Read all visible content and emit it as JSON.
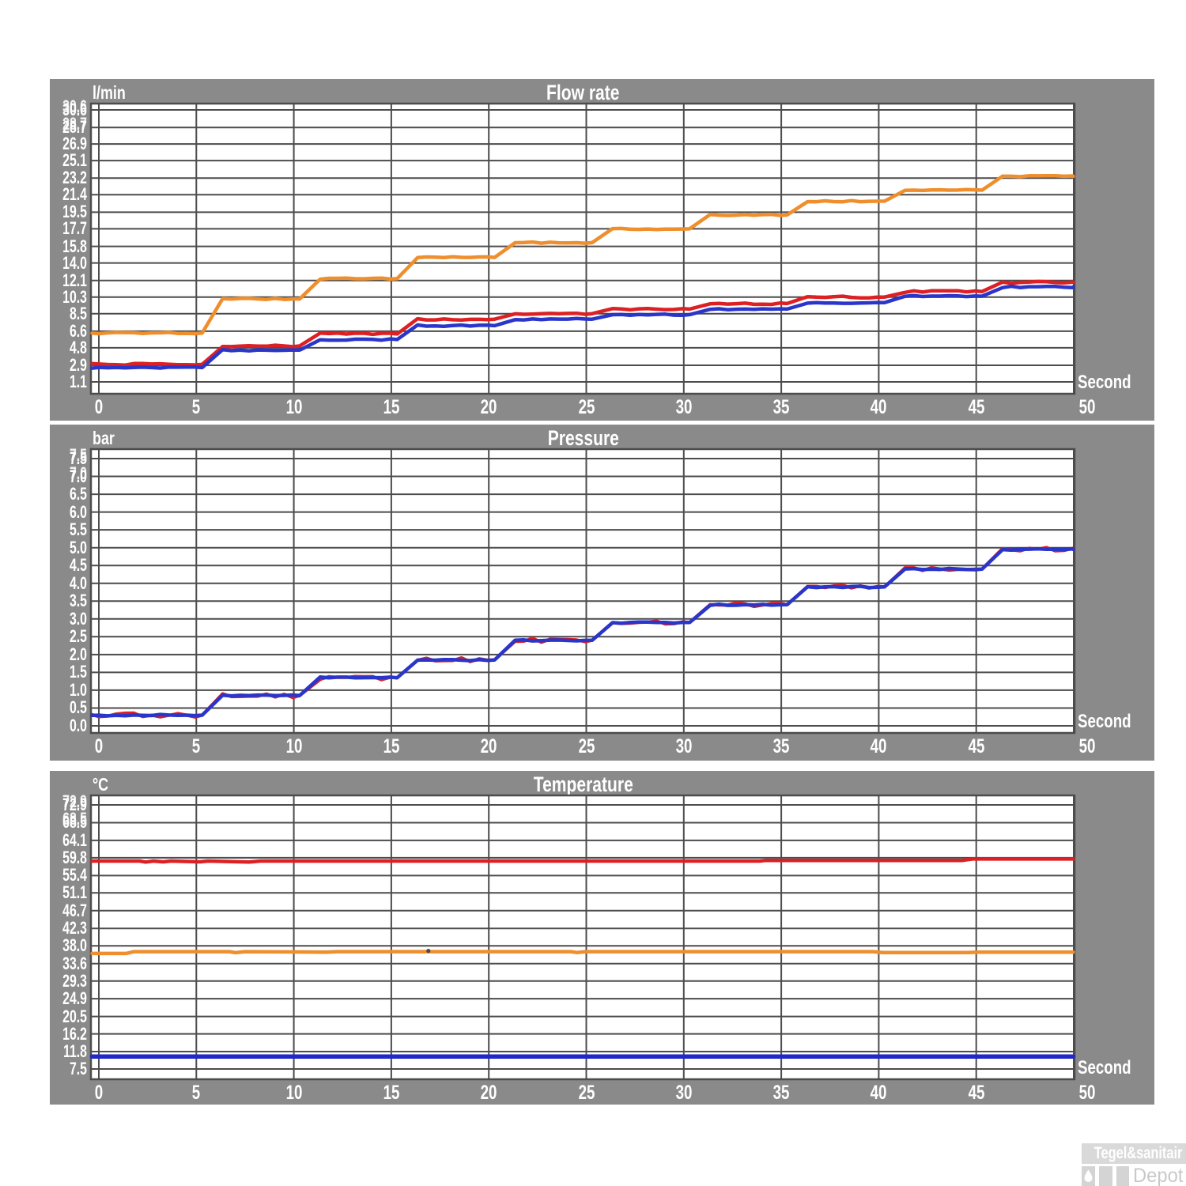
{
  "watermark": {
    "brand": "Tegel&sanitair",
    "sub": "Depot",
    "drop_icon": "water-drop"
  },
  "chart_data": [
    {
      "type": "line",
      "title": "Flow rate",
      "ylabel": "l/min",
      "xlabel": "Second",
      "x_range": [
        0,
        50
      ],
      "grid": true,
      "legend": "none",
      "plateau_interval_s": 5,
      "x_ticks": [
        "0",
        "5",
        "10",
        "15",
        "20",
        "25",
        "30",
        "35",
        "40",
        "45",
        "50"
      ],
      "y_ticks": [
        "30.6",
        "28.7",
        "26.9",
        "25.1",
        "23.2",
        "21.4",
        "19.5",
        "17.7",
        "15.8",
        "14.0",
        "12.1",
        "10.3",
        "8.5",
        "6.6",
        "4.8",
        "2.9",
        "1.1"
      ],
      "y_ticks_doubled": 2,
      "series": [
        {
          "name": "orange-line",
          "color": "#ef8e2c",
          "width": 4.5,
          "noise": 0.07,
          "plateaus": [
            6.4,
            10.1,
            12.3,
            14.6,
            16.2,
            17.7,
            19.2,
            20.7,
            21.9,
            23.4
          ]
        },
        {
          "name": "red-line",
          "color": "#dc2024",
          "width": 4.5,
          "noise": 0.1,
          "plateaus": [
            3.0,
            5.0,
            6.3,
            7.9,
            8.5,
            9.0,
            9.6,
            10.3,
            10.9,
            11.9
          ]
        },
        {
          "name": "blue-line",
          "color": "#2a35c9",
          "width": 4.5,
          "noise": 0.08,
          "plateaus": [
            2.65,
            4.55,
            5.7,
            7.2,
            7.9,
            8.4,
            9.0,
            9.7,
            10.4,
            11.4
          ]
        }
      ]
    },
    {
      "type": "line",
      "title": "Pressure",
      "ylabel": "bar",
      "xlabel": "Second",
      "x_range": [
        0,
        50
      ],
      "grid": true,
      "legend": "none",
      "plateau_interval_s": 5,
      "x_ticks": [
        "0",
        "5",
        "10",
        "15",
        "20",
        "25",
        "30",
        "35",
        "40",
        "45",
        "50"
      ],
      "y_ticks": [
        "7.5",
        "7.0",
        "6.5",
        "6.0",
        "5.5",
        "5.0",
        "4.5",
        "4.0",
        "3.5",
        "3.0",
        "2.5",
        "2.0",
        "1.5",
        "1.0",
        "0.5",
        "0.0"
      ],
      "y_ticks_doubled": 2,
      "series": [
        {
          "name": "red-line",
          "color": "#dc2024",
          "width": 4,
          "noise": 0.06,
          "plateaus": [
            0.3,
            0.85,
            1.35,
            1.85,
            2.4,
            2.9,
            3.4,
            3.9,
            4.4,
            4.95
          ]
        },
        {
          "name": "blue-line",
          "color": "#2a35c9",
          "width": 4.5,
          "noise": 0.02,
          "plateaus": [
            0.3,
            0.85,
            1.35,
            1.85,
            2.4,
            2.9,
            3.4,
            3.9,
            4.4,
            4.95
          ]
        }
      ]
    },
    {
      "type": "line",
      "title": "Temperature",
      "ylabel": "°C",
      "xlabel": "Second",
      "x_range": [
        0,
        50
      ],
      "grid": true,
      "legend": "none",
      "x_ticks": [
        "0",
        "5",
        "10",
        "15",
        "20",
        "25",
        "30",
        "35",
        "40",
        "45",
        "50"
      ],
      "y_ticks": [
        "72.9",
        "68.5",
        "64.1",
        "59.8",
        "55.4",
        "51.1",
        "46.7",
        "42.3",
        "38.0",
        "33.6",
        "29.3",
        "24.9",
        "20.5",
        "16.2",
        "11.8",
        "7.5"
      ],
      "y_ticks_doubled": 2,
      "series": [
        {
          "name": "red-line",
          "color": "#dc2024",
          "width": 4.5,
          "points": [
            [
              -0.4,
              59.0
            ],
            [
              2.1,
              59.0
            ],
            [
              2.4,
              58.75
            ],
            [
              2.8,
              59.0
            ],
            [
              3.3,
              58.8
            ],
            [
              3.7,
              59.0
            ],
            [
              5.2,
              58.8
            ],
            [
              5.6,
              59.0
            ],
            [
              7.7,
              58.75
            ],
            [
              8.3,
              59.0
            ],
            [
              33.9,
              59.0
            ],
            [
              34.2,
              59.15
            ],
            [
              44.3,
              59.15
            ],
            [
              44.8,
              59.5
            ],
            [
              50.2,
              59.5
            ]
          ]
        },
        {
          "name": "orange-line",
          "color": "#ef8e2c",
          "width": 4.5,
          "points": [
            [
              -0.4,
              36.1
            ],
            [
              1.4,
              36.1
            ],
            [
              1.8,
              36.55
            ],
            [
              6.7,
              36.55
            ],
            [
              7.0,
              36.3
            ],
            [
              7.5,
              36.55
            ],
            [
              11.7,
              36.45
            ],
            [
              12.2,
              36.55
            ],
            [
              24.2,
              36.55
            ],
            [
              24.5,
              36.35
            ],
            [
              25.0,
              36.55
            ],
            [
              39.7,
              36.55
            ],
            [
              40.2,
              36.35
            ],
            [
              44.6,
              36.35
            ],
            [
              45.1,
              36.45
            ],
            [
              50.2,
              36.45
            ]
          ]
        },
        {
          "name": "blue-line",
          "color": "#2028c8",
          "width": 5.5,
          "points": [
            [
              -0.4,
              10.6
            ],
            [
              50.2,
              10.6
            ]
          ]
        }
      ],
      "markers": [
        {
          "t": 16.9,
          "v": 36.75,
          "color": "#4a4a4a"
        }
      ]
    }
  ]
}
